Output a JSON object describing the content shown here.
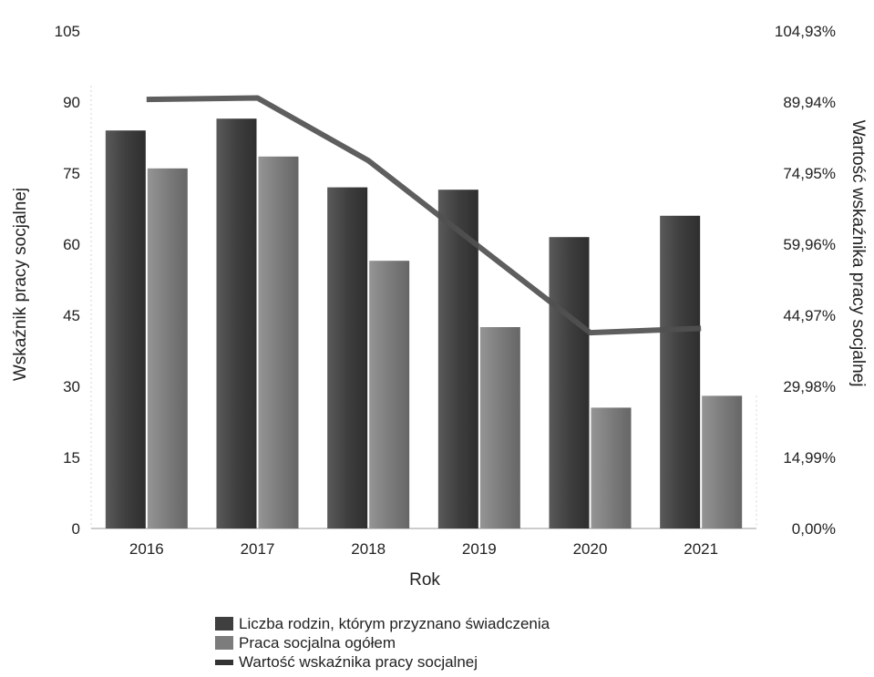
{
  "chart_data": {
    "type": "bar",
    "categories": [
      "2016",
      "2017",
      "2018",
      "2019",
      "2020",
      "2021"
    ],
    "xlabel": "Rok",
    "ylabel": "Wskaźnik pracy socjalnej",
    "y2label": "Wartość wskaźnika pracy socjalnej",
    "ylim": [
      0,
      105
    ],
    "yticks": [
      "0",
      "15",
      "30",
      "45",
      "60",
      "75",
      "90",
      "105"
    ],
    "y2lim": [
      0,
      104.93
    ],
    "y2ticks": [
      "0,00%",
      "14,99%",
      "29,98%",
      "44,97%",
      "59,96%",
      "74,95%",
      "89,94%",
      "104,93%"
    ],
    "grid": false,
    "legend_position": "bottom",
    "series": [
      {
        "name": "Liczba rodzin, którym przyznano świadczenia",
        "type": "bar",
        "axis": "left",
        "color": "#3f3f3f",
        "values": [
          84,
          86.5,
          72,
          71.5,
          61.5,
          66
        ]
      },
      {
        "name": "Praca socjalna ogółem",
        "type": "bar",
        "axis": "left",
        "color": "#7c7c7c",
        "values": [
          76,
          78.5,
          56.5,
          42.5,
          25.5,
          28
        ]
      },
      {
        "name": "Wartość wskaźnika pracy socjalnej",
        "type": "line",
        "axis": "right",
        "color": "#505050",
        "values": [
          90.5,
          90.8,
          77.6,
          59.4,
          41.3,
          42.2
        ]
      }
    ]
  }
}
